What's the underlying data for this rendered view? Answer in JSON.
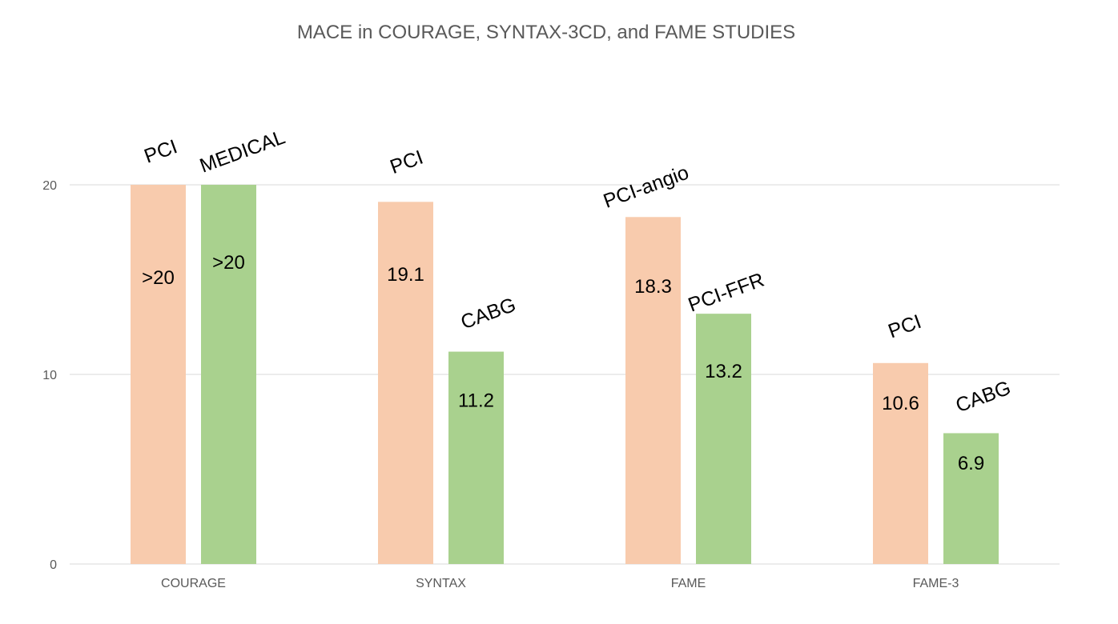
{
  "chart_data": {
    "type": "bar",
    "title": "MACE in COURAGE, SYNTAX-3CD, and FAME STUDIES",
    "categories": [
      "COURAGE",
      "SYNTAX",
      "FAME",
      "FAME-3"
    ],
    "ylim": [
      0,
      20
    ],
    "yticks": [
      "0",
      "10",
      "20"
    ],
    "grid": true,
    "legend": "none",
    "colors": {
      "first": "#f8cbad",
      "second": "#a9d18e"
    },
    "groups": [
      {
        "category": "COURAGE",
        "bars": [
          {
            "label": "PCI",
            "value": 20,
            "data_label": ">20"
          },
          {
            "label": "MEDICAL",
            "value": 20,
            "data_label": ">20"
          }
        ]
      },
      {
        "category": "SYNTAX",
        "bars": [
          {
            "label": "PCI",
            "value": 19.1,
            "data_label": "19.1"
          },
          {
            "label": "CABG",
            "value": 11.2,
            "data_label": "11.2"
          }
        ]
      },
      {
        "category": "FAME",
        "bars": [
          {
            "label": "PCI-angio",
            "value": 18.3,
            "data_label": "18.3"
          },
          {
            "label": "PCI-FFR",
            "value": 13.2,
            "data_label": "13.2"
          }
        ]
      },
      {
        "category": "FAME-3",
        "bars": [
          {
            "label": "PCI",
            "value": 10.6,
            "data_label": "10.6"
          },
          {
            "label": "CABG",
            "value": 6.9,
            "data_label": "6.9"
          }
        ]
      }
    ]
  }
}
